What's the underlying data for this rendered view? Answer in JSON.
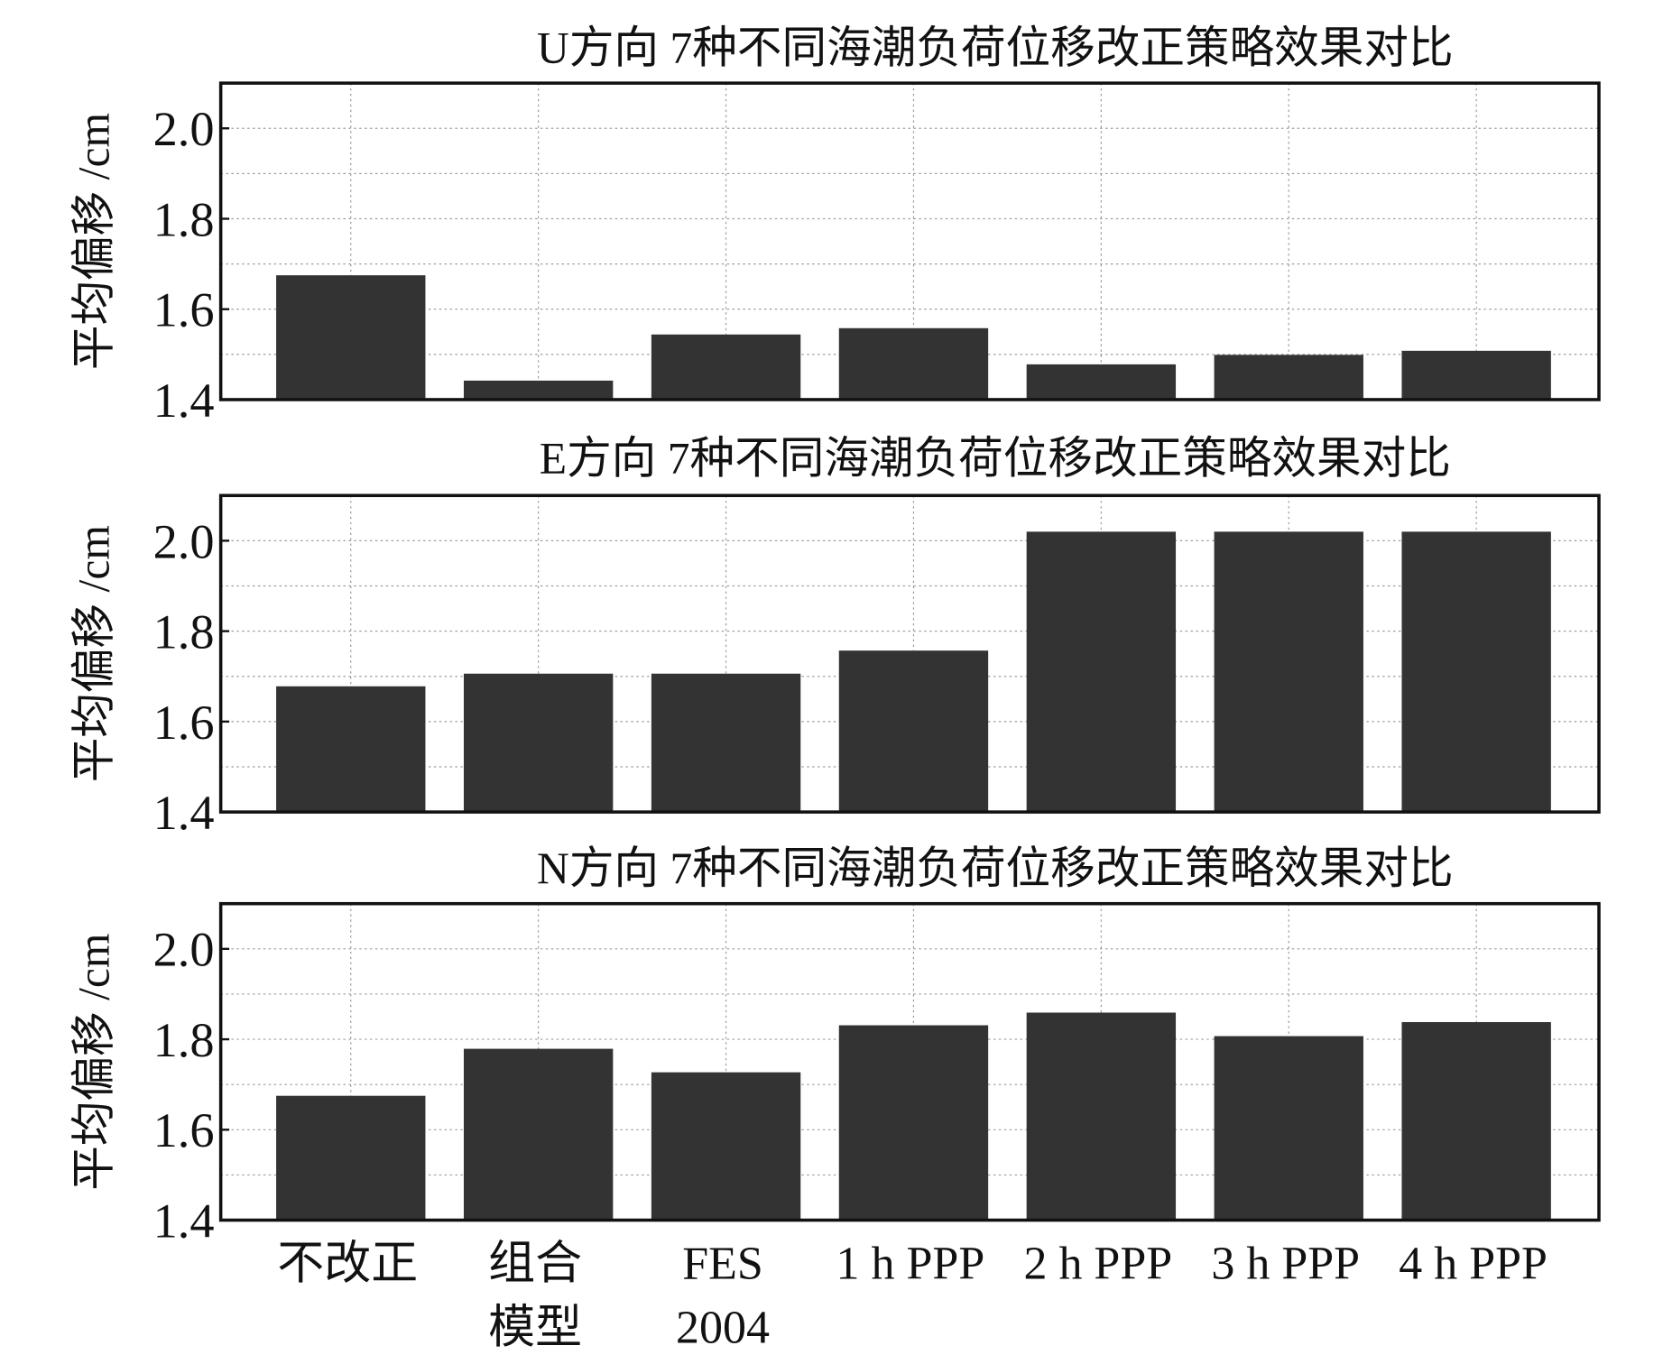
{
  "chart_data": [
    {
      "type": "bar",
      "title": "U方向 7种不同海潮负荷位移改正策略效果对比",
      "y_label": "平均偏移 /cm",
      "categories": [
        "不改正",
        "组合\n模型",
        "FES\n2004",
        "1 h PPP",
        "2 h PPP",
        "3 h PPP",
        "4 h PPP"
      ],
      "values": [
        1.675,
        1.442,
        1.544,
        1.558,
        1.478,
        1.499,
        1.508
      ],
      "color": "#333333",
      "ylim": [
        1.4,
        2.1
      ],
      "yticks": [
        1.4,
        1.6,
        1.8,
        {
          "value": 2,
          "label": "2.0"
        }
      ],
      "yminor": [
        1.5,
        1.7,
        1.9
      ],
      "grid": true
    },
    {
      "type": "bar",
      "title": "E方向 7种不同海潮负荷位移改正策略效果对比",
      "y_label": "平均偏移 /cm",
      "categories": [
        "不改正",
        "组合\n模型",
        "FES\n2004",
        "1 h PPP",
        "2 h PPP",
        "3 h PPP",
        "4 h PPP"
      ],
      "values": [
        1.678,
        1.706,
        1.706,
        1.757,
        2.02,
        2.02,
        2.02
      ],
      "color": "#333333",
      "ylim": [
        1.4,
        2.1
      ],
      "yticks": [
        1.4,
        1.6,
        1.8,
        {
          "value": 2,
          "label": "2.0"
        }
      ],
      "yminor": [
        1.5,
        1.7,
        1.9
      ],
      "grid": true
    },
    {
      "type": "bar",
      "title": "N方向 7种不同海潮负荷位移改正策略效果对比",
      "y_label": "平均偏移 /cm",
      "categories": [
        "不改正",
        "组合\n模型",
        "FES\n2004",
        "1 h PPP",
        "2 h PPP",
        "3 h PPP",
        "4 h PPP"
      ],
      "values": [
        1.675,
        1.779,
        1.727,
        1.831,
        1.859,
        1.807,
        1.838
      ],
      "color": "#333333",
      "ylim": [
        1.4,
        2.1
      ],
      "yticks": [
        1.4,
        1.6,
        1.8,
        {
          "value": 2,
          "label": "2.0"
        }
      ],
      "yminor": [
        1.5,
        1.7,
        1.9
      ],
      "grid": true,
      "show_categories": true
    }
  ]
}
